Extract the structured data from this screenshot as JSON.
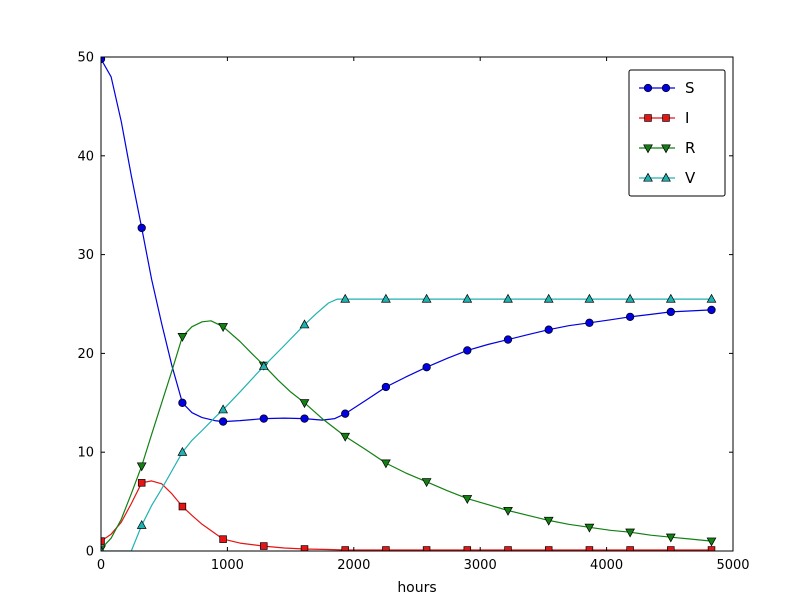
{
  "chart_data": {
    "type": "line",
    "title": "",
    "xlabel": "hours",
    "ylabel": "",
    "xlim": [
      0,
      5000
    ],
    "ylim": [
      0,
      50
    ],
    "x_ticks": [
      0,
      1000,
      2000,
      3000,
      4000,
      5000
    ],
    "y_ticks": [
      0,
      10,
      20,
      30,
      40,
      50
    ],
    "grid": false,
    "legend_position": "upper right",
    "background": "#ffffff",
    "axes_color": "#000000",
    "series": [
      {
        "name": "S",
        "color": "#0000e0",
        "marker": "circle",
        "line_x": [
          0,
          80,
          160,
          240,
          322,
          400,
          480,
          560,
          644,
          720,
          800,
          900,
          966,
          1100,
          1288,
          1450,
          1610,
          1750,
          1850,
          1932,
          2090,
          2254,
          2410,
          2576,
          2740,
          2898,
          3060,
          3220,
          3380,
          3542,
          3700,
          3864,
          4030,
          4186,
          4350,
          4508,
          4670,
          4830
        ],
        "line_y": [
          49.8,
          48.0,
          43.5,
          38.0,
          32.7,
          27.5,
          23.0,
          18.8,
          15.0,
          14.0,
          13.5,
          13.2,
          13.1,
          13.2,
          13.4,
          13.45,
          13.4,
          13.25,
          13.4,
          13.9,
          15.2,
          16.6,
          17.6,
          18.6,
          19.5,
          20.3,
          20.9,
          21.4,
          21.9,
          22.4,
          22.8,
          23.1,
          23.4,
          23.7,
          23.95,
          24.2,
          24.3,
          24.4
        ],
        "marker_x": [
          0,
          322,
          644,
          966,
          1288,
          1610,
          1932,
          2254,
          2576,
          2898,
          3220,
          3542,
          3864,
          4186,
          4508,
          4830
        ],
        "marker_y": [
          49.8,
          32.7,
          15.0,
          13.1,
          13.4,
          13.4,
          13.9,
          16.6,
          18.6,
          20.3,
          21.4,
          22.4,
          23.1,
          23.7,
          24.2,
          24.4
        ]
      },
      {
        "name": "I",
        "color": "#e61414",
        "marker": "square",
        "line_x": [
          0,
          80,
          160,
          240,
          322,
          400,
          480,
          560,
          644,
          720,
          800,
          900,
          966,
          1100,
          1288,
          1450,
          1610,
          1800,
          1932,
          2254,
          2576,
          2898,
          3220,
          3542,
          3864,
          4186,
          4508,
          4830
        ],
        "line_y": [
          1.0,
          1.7,
          2.9,
          4.8,
          6.9,
          7.1,
          6.8,
          5.8,
          4.5,
          3.6,
          2.7,
          1.8,
          1.2,
          0.8,
          0.5,
          0.3,
          0.2,
          0.15,
          0.1,
          0.1,
          0.1,
          0.1,
          0.1,
          0.1,
          0.1,
          0.1,
          0.1,
          0.1
        ],
        "marker_x": [
          0,
          322,
          644,
          966,
          1288,
          1610,
          1932,
          2254,
          2576,
          2898,
          3220,
          3542,
          3864,
          4186,
          4508,
          4830
        ],
        "marker_y": [
          1.0,
          6.9,
          4.5,
          1.2,
          0.5,
          0.2,
          0.1,
          0.1,
          0.1,
          0.1,
          0.1,
          0.1,
          0.1,
          0.1,
          0.1,
          0.1
        ]
      },
      {
        "name": "R",
        "color": "#128012",
        "marker": "triangle-down",
        "line_x": [
          0,
          80,
          160,
          240,
          322,
          400,
          480,
          560,
          644,
          720,
          800,
          870,
          966,
          1100,
          1200,
          1288,
          1400,
          1500,
          1610,
          1750,
          1932,
          2090,
          2254,
          2410,
          2576,
          2740,
          2898,
          3060,
          3220,
          3380,
          3542,
          3700,
          3864,
          4030,
          4186,
          4350,
          4508,
          4670,
          4830
        ],
        "line_y": [
          0.2,
          1.3,
          3.2,
          5.8,
          8.6,
          11.8,
          15.0,
          18.2,
          21.7,
          22.7,
          23.2,
          23.3,
          22.7,
          21.2,
          19.9,
          18.8,
          17.3,
          16.1,
          15.0,
          13.4,
          11.6,
          10.3,
          8.9,
          7.9,
          7.0,
          6.1,
          5.3,
          4.7,
          4.1,
          3.6,
          3.1,
          2.7,
          2.4,
          2.1,
          1.9,
          1.6,
          1.4,
          1.2,
          1.0
        ],
        "marker_x": [
          0,
          322,
          644,
          966,
          1288,
          1610,
          1932,
          2254,
          2576,
          2898,
          3220,
          3542,
          3864,
          4186,
          4508,
          4830
        ],
        "marker_y": [
          0.2,
          8.6,
          21.7,
          22.7,
          18.8,
          15.0,
          11.6,
          8.9,
          7.0,
          5.3,
          4.1,
          3.1,
          2.4,
          1.9,
          1.4,
          1.0
        ]
      },
      {
        "name": "V",
        "color": "#20b2b2",
        "marker": "triangle-up",
        "line_x": [
          0,
          240,
          322,
          400,
          480,
          560,
          644,
          720,
          800,
          900,
          966,
          1100,
          1288,
          1450,
          1610,
          1700,
          1800,
          1870,
          1932,
          2254,
          2576,
          2898,
          3220,
          3542,
          3864,
          4186,
          4508,
          4830
        ],
        "line_y": [
          0,
          0,
          2.6,
          4.6,
          6.3,
          8.1,
          10.0,
          11.2,
          12.2,
          13.5,
          14.3,
          16.1,
          18.7,
          20.8,
          22.9,
          24.0,
          25.1,
          25.5,
          25.5,
          25.5,
          25.5,
          25.5,
          25.5,
          25.5,
          25.5,
          25.5,
          25.5,
          25.5
        ],
        "marker_x": [
          0,
          322,
          644,
          966,
          1288,
          1610,
          1932,
          2254,
          2576,
          2898,
          3220,
          3542,
          3864,
          4186,
          4508,
          4830
        ],
        "marker_y": [
          0,
          2.6,
          10.0,
          14.3,
          18.7,
          22.9,
          25.5,
          25.5,
          25.5,
          25.5,
          25.5,
          25.5,
          25.5,
          25.5,
          25.5,
          25.5
        ]
      }
    ]
  }
}
